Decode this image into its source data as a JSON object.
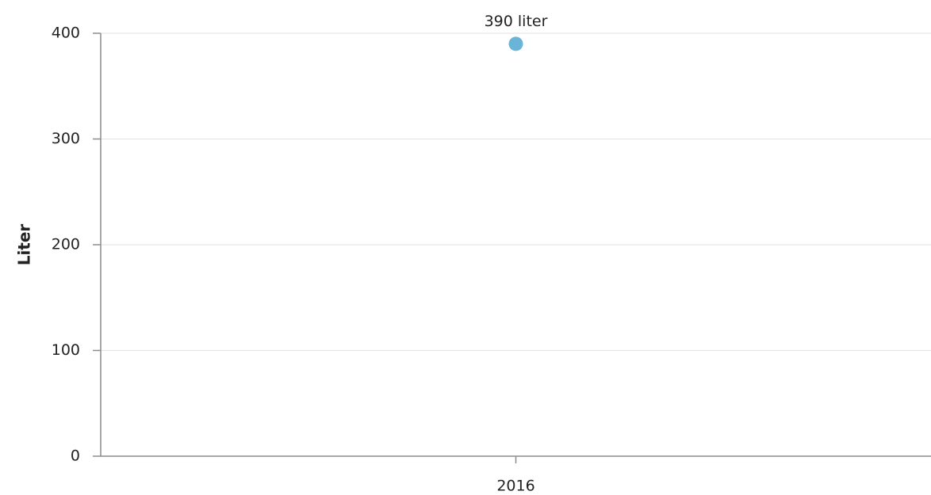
{
  "chart_data": {
    "type": "line",
    "categories": [
      "2016"
    ],
    "values": [
      390
    ],
    "value_labels": [
      "390 liter"
    ],
    "color": "#6ab4d8",
    "ylabel": "Liter",
    "ylim": [
      0,
      400
    ],
    "yticks": [
      0,
      100,
      200,
      300,
      400
    ],
    "grid": true
  }
}
